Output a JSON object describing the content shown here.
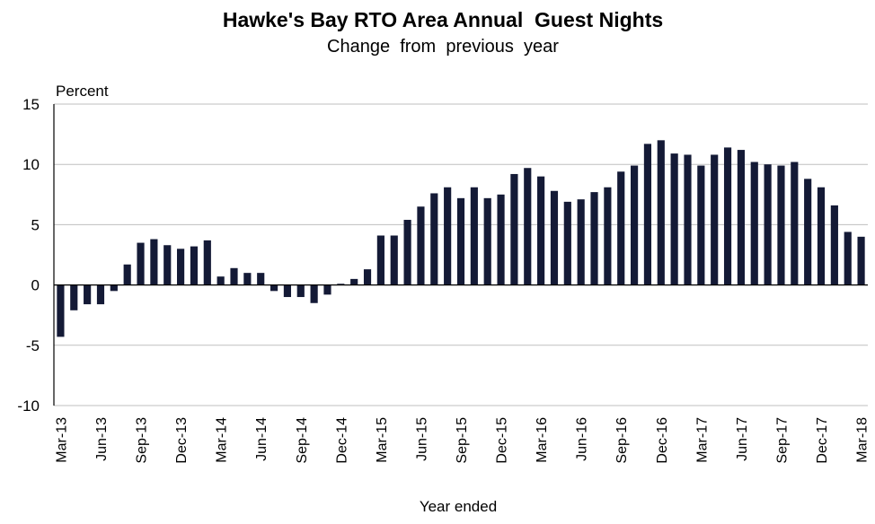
{
  "chart_data": {
    "type": "bar",
    "title": "Hawke's Bay RTO Area Annual  Guest Nights",
    "subtitle": "Change  from  previous  year",
    "ylabel": "Percent",
    "xlabel": "Year ended",
    "ylim": [
      -10,
      15
    ],
    "yticks": [
      -10,
      -5,
      0,
      5,
      10,
      15
    ],
    "grid": true,
    "legend": "none",
    "colors": {
      "bar": "#141a36",
      "grid": "#bfbfbf",
      "axis": "#000000"
    },
    "categories": [
      "Mar-13",
      "Apr-13",
      "May-13",
      "Jun-13",
      "Jul-13",
      "Aug-13",
      "Sep-13",
      "Oct-13",
      "Nov-13",
      "Dec-13",
      "Jan-14",
      "Feb-14",
      "Mar-14",
      "Apr-14",
      "May-14",
      "Jun-14",
      "Jul-14",
      "Aug-14",
      "Sep-14",
      "Oct-14",
      "Nov-14",
      "Dec-14",
      "Jan-15",
      "Feb-15",
      "Mar-15",
      "Apr-15",
      "May-15",
      "Jun-15",
      "Jul-15",
      "Aug-15",
      "Sep-15",
      "Oct-15",
      "Nov-15",
      "Dec-15",
      "Jan-16",
      "Feb-16",
      "Mar-16",
      "Apr-16",
      "May-16",
      "Jun-16",
      "Jul-16",
      "Aug-16",
      "Sep-16",
      "Oct-16",
      "Nov-16",
      "Dec-16",
      "Jan-17",
      "Feb-17",
      "Mar-17",
      "Apr-17",
      "May-17",
      "Jun-17",
      "Jul-17",
      "Aug-17",
      "Sep-17",
      "Oct-17",
      "Nov-17",
      "Dec-17",
      "Jan-18",
      "Feb-18",
      "Mar-18"
    ],
    "xtick_labels": [
      "Mar-13",
      "Jun-13",
      "Sep-13",
      "Dec-13",
      "Mar-14",
      "Jun-14",
      "Sep-14",
      "Dec-14",
      "Mar-15",
      "Jun-15",
      "Sep-15",
      "Dec-15",
      "Mar-16",
      "Jun-16",
      "Sep-16",
      "Dec-16",
      "Mar-17",
      "Jun-17",
      "Sep-17",
      "Dec-17",
      "Mar-18"
    ],
    "series": [
      {
        "values": [
          -4.3,
          -2.1,
          -1.6,
          -1.6,
          -0.5,
          1.7,
          3.5,
          3.8,
          3.3,
          3.0,
          3.2,
          3.7,
          0.7,
          1.4,
          1.0,
          1.0,
          -0.5,
          -1.0,
          -1.0,
          -1.5,
          -0.8,
          0.1,
          0.5,
          1.3,
          4.1,
          4.1,
          5.4,
          6.5,
          7.6,
          8.1,
          7.2,
          8.1,
          7.2,
          7.5,
          9.2,
          9.7,
          9.0,
          7.8,
          6.9,
          7.1,
          7.7,
          8.1,
          9.4,
          9.9,
          11.7,
          12.0,
          10.9,
          10.8,
          9.9,
          10.8,
          11.4,
          11.2,
          10.2,
          10.0,
          9.9,
          10.2,
          8.8,
          8.1,
          6.6,
          4.4,
          4.0
        ]
      }
    ]
  }
}
